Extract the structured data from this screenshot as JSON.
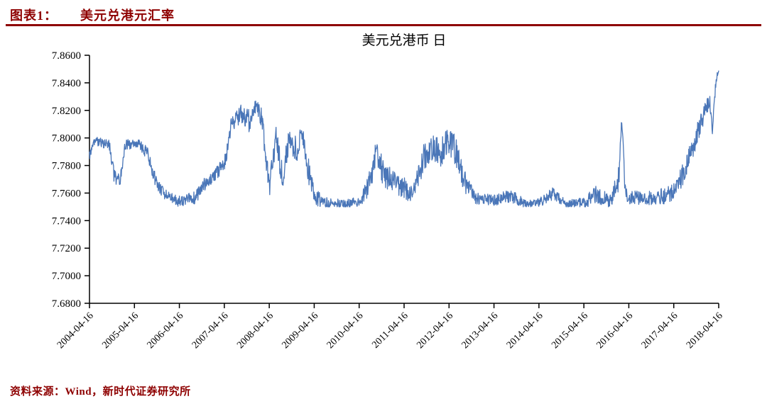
{
  "colors": {
    "accent": "#8e0000",
    "line": "#4a76b8",
    "axis": "#000000"
  },
  "header": {
    "figure_label": "图表1：",
    "figure_title": "美元兑港元汇率"
  },
  "footer": {
    "source": "资料来源：Wind，新时代证券研究所"
  },
  "chart_data": {
    "type": "line",
    "title": "美元兑港币 日",
    "xlabel": "",
    "ylabel": "",
    "grid": false,
    "legend": "none",
    "ylim": [
      7.68,
      7.86
    ],
    "yticks": [
      7.68,
      7.7,
      7.72,
      7.74,
      7.76,
      7.78,
      7.8,
      7.82,
      7.84,
      7.86
    ],
    "ytick_labels": [
      "7.6800",
      "7.7000",
      "7.7200",
      "7.7400",
      "7.7600",
      "7.7800",
      "7.8000",
      "7.8200",
      "7.8400",
      "7.8600"
    ],
    "xtick_labels": [
      "2004-04-16",
      "2005-04-16",
      "2006-04-16",
      "2007-04-16",
      "2008-04-16",
      "2009-04-16",
      "2010-04-16",
      "2011-04-16",
      "2012-04-16",
      "2013-04-16",
      "2014-04-16",
      "2015-04-16",
      "2016-04-16",
      "2017-04-16",
      "2018-04-16"
    ],
    "x_start": "2004-04-16",
    "x_end": "2018-04-16",
    "x_years_span": 14,
    "band_floor": 7.75,
    "band_cap": 7.85,
    "series": [
      {
        "name": "USD/HKD",
        "color": "#4a76b8",
        "anchors": [
          [
            0.0,
            7.787,
            0.004
          ],
          [
            0.1,
            7.798,
            0.003
          ],
          [
            0.45,
            7.795,
            0.004
          ],
          [
            0.55,
            7.772,
            0.006
          ],
          [
            0.68,
            7.77,
            0.006
          ],
          [
            0.8,
            7.795,
            0.004
          ],
          [
            1.1,
            7.796,
            0.003
          ],
          [
            1.3,
            7.788,
            0.005
          ],
          [
            1.5,
            7.766,
            0.005
          ],
          [
            1.75,
            7.757,
            0.004
          ],
          [
            2.0,
            7.754,
            0.004
          ],
          [
            2.35,
            7.757,
            0.005
          ],
          [
            2.6,
            7.768,
            0.005
          ],
          [
            2.85,
            7.776,
            0.005
          ],
          [
            3.0,
            7.78,
            0.006
          ],
          [
            3.15,
            7.808,
            0.006
          ],
          [
            3.35,
            7.818,
            0.007
          ],
          [
            3.55,
            7.812,
            0.009
          ],
          [
            3.72,
            7.824,
            0.005
          ],
          [
            3.85,
            7.81,
            0.01
          ],
          [
            4.0,
            7.763,
            0.008
          ],
          [
            4.15,
            7.798,
            0.01
          ],
          [
            4.3,
            7.77,
            0.01
          ],
          [
            4.45,
            7.802,
            0.008
          ],
          [
            4.6,
            7.788,
            0.012
          ],
          [
            4.72,
            7.806,
            0.006
          ],
          [
            4.85,
            7.78,
            0.01
          ],
          [
            5.0,
            7.757,
            0.006
          ],
          [
            5.3,
            7.753,
            0.004
          ],
          [
            5.7,
            7.752,
            0.003
          ],
          [
            6.0,
            7.754,
            0.004
          ],
          [
            6.2,
            7.764,
            0.008
          ],
          [
            6.38,
            7.788,
            0.01
          ],
          [
            6.55,
            7.774,
            0.01
          ],
          [
            6.75,
            7.768,
            0.008
          ],
          [
            7.0,
            7.764,
            0.008
          ],
          [
            7.2,
            7.758,
            0.006
          ],
          [
            7.4,
            7.782,
            0.012
          ],
          [
            7.6,
            7.794,
            0.01
          ],
          [
            7.8,
            7.788,
            0.012
          ],
          [
            8.0,
            7.798,
            0.01
          ],
          [
            8.15,
            7.79,
            0.012
          ],
          [
            8.35,
            7.768,
            0.008
          ],
          [
            8.6,
            7.756,
            0.004
          ],
          [
            9.0,
            7.755,
            0.004
          ],
          [
            9.4,
            7.758,
            0.005
          ],
          [
            9.7,
            7.752,
            0.003
          ],
          [
            10.0,
            7.753,
            0.003
          ],
          [
            10.3,
            7.759,
            0.005
          ],
          [
            10.6,
            7.752,
            0.003
          ],
          [
            11.0,
            7.753,
            0.004
          ],
          [
            11.3,
            7.759,
            0.007
          ],
          [
            11.6,
            7.754,
            0.005
          ],
          [
            11.78,
            7.77,
            0.01
          ],
          [
            11.84,
            7.816,
            0.004
          ],
          [
            11.92,
            7.763,
            0.008
          ],
          [
            12.0,
            7.757,
            0.005
          ],
          [
            12.4,
            7.756,
            0.005
          ],
          [
            12.8,
            7.758,
            0.006
          ],
          [
            13.0,
            7.761,
            0.006
          ],
          [
            13.2,
            7.773,
            0.008
          ],
          [
            13.4,
            7.791,
            0.008
          ],
          [
            13.55,
            7.806,
            0.008
          ],
          [
            13.68,
            7.818,
            0.007
          ],
          [
            13.8,
            7.828,
            0.005
          ],
          [
            13.86,
            7.803,
            0.006
          ],
          [
            13.93,
            7.838,
            0.004
          ],
          [
            13.97,
            7.846,
            0.003
          ],
          [
            14.0,
            7.85,
            0.002
          ]
        ]
      }
    ]
  }
}
